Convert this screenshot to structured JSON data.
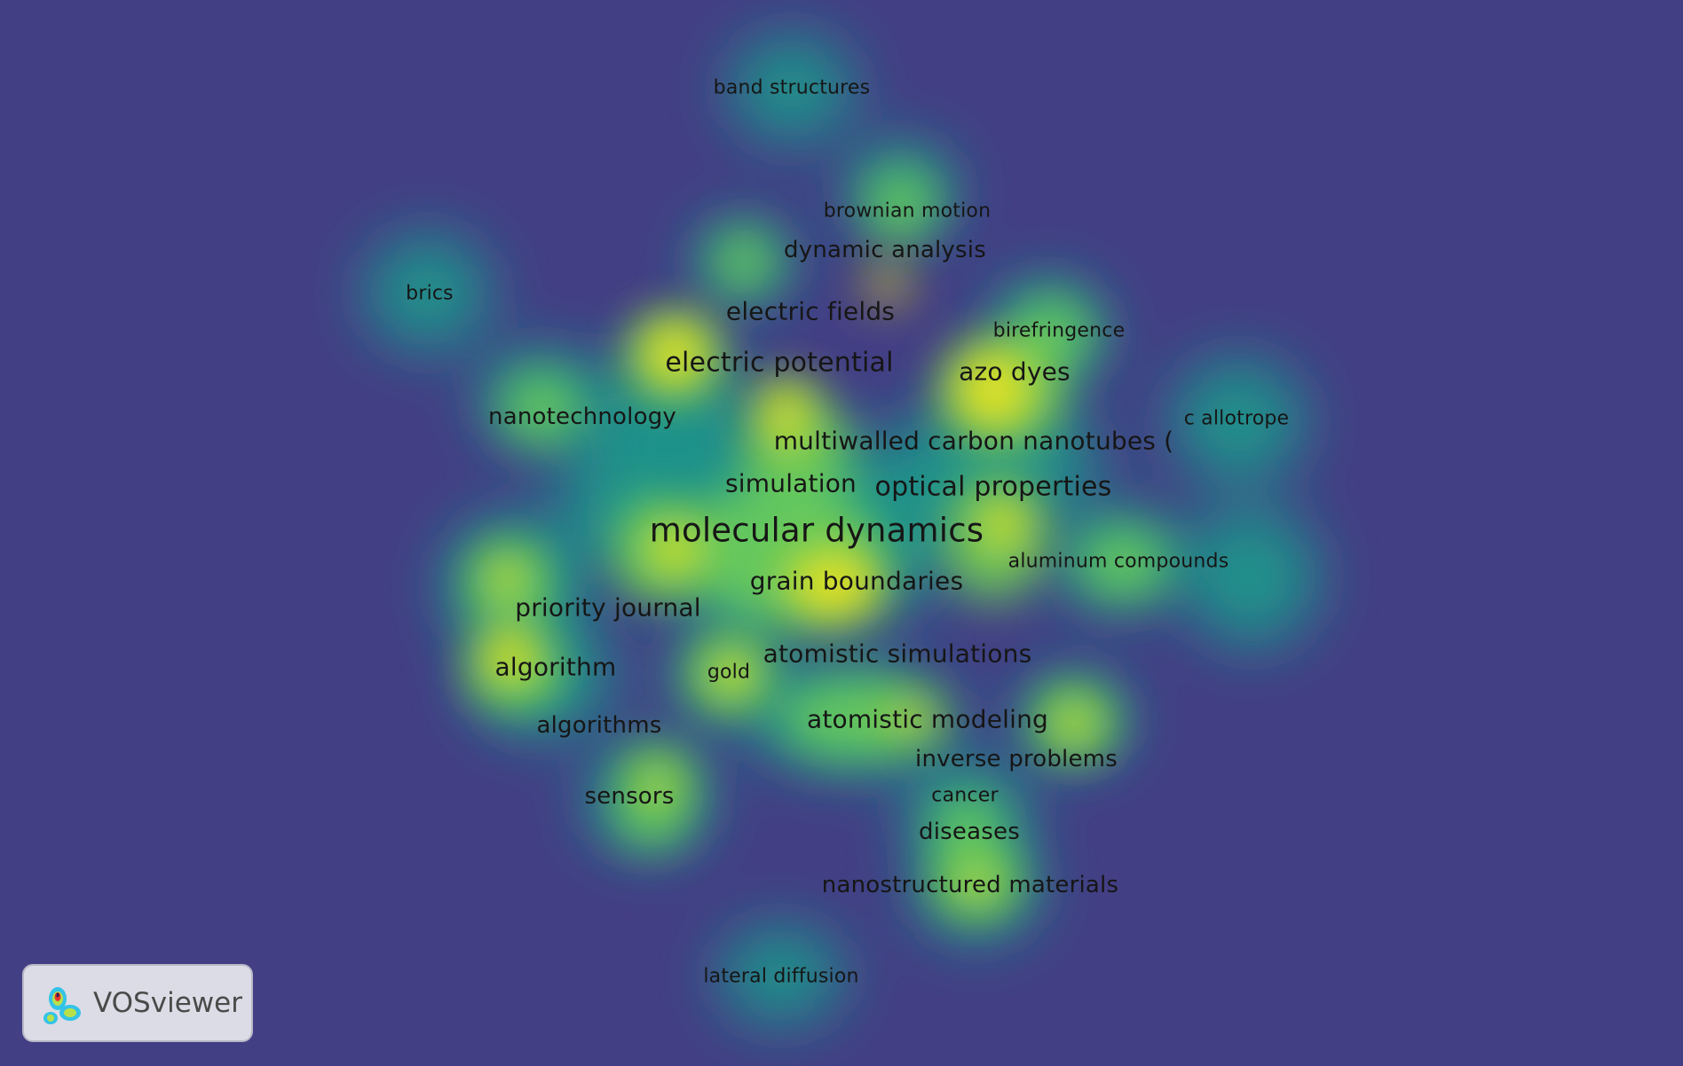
{
  "view": "density visualization",
  "colors": {
    "background": "#433f85",
    "low": "#1f968b",
    "mid": "#6ccd5a",
    "high": "#f2e51d",
    "peak": "#f9ee10"
  },
  "terms": [
    {
      "label": "band structures",
      "density": 0.35
    },
    {
      "label": "brownian motion",
      "density": 0.45
    },
    {
      "label": "dynamic analysis",
      "density": 0.6
    },
    {
      "label": "brics",
      "density": 0.35
    },
    {
      "label": "electric fields",
      "density": 0.6
    },
    {
      "label": "birefringence",
      "density": 0.5
    },
    {
      "label": "electric potential",
      "density": 1.0
    },
    {
      "label": "azo dyes",
      "density": 0.85
    },
    {
      "label": "nanotechnology",
      "density": 0.5
    },
    {
      "label": "c allotrope",
      "density": 0.35
    },
    {
      "label": "multiwalled carbon nanotubes (",
      "density": 0.75
    },
    {
      "label": "simulation",
      "density": 0.75
    },
    {
      "label": "optical properties",
      "density": 0.85
    },
    {
      "label": "molecular dynamics",
      "density": 0.95
    },
    {
      "label": "aluminum compounds",
      "density": 0.5
    },
    {
      "label": "grain boundaries",
      "density": 0.95
    },
    {
      "label": "priority journal",
      "density": 0.75
    },
    {
      "label": "algorithm",
      "density": 0.85
    },
    {
      "label": "gold",
      "density": 0.7
    },
    {
      "label": "atomistic simulations",
      "density": 0.65
    },
    {
      "label": "algorithms",
      "density": 0.5
    },
    {
      "label": "atomistic modeling",
      "density": 0.7
    },
    {
      "label": "inverse problems",
      "density": 0.75
    },
    {
      "label": "sensors",
      "density": 0.75
    },
    {
      "label": "cancer",
      "density": 0.5
    },
    {
      "label": "diseases",
      "density": 0.6
    },
    {
      "label": "nanostructured materials",
      "density": 0.7
    },
    {
      "label": "lateral diffusion",
      "density": 0.35
    }
  ],
  "logo": {
    "text": "VOSviewer"
  }
}
